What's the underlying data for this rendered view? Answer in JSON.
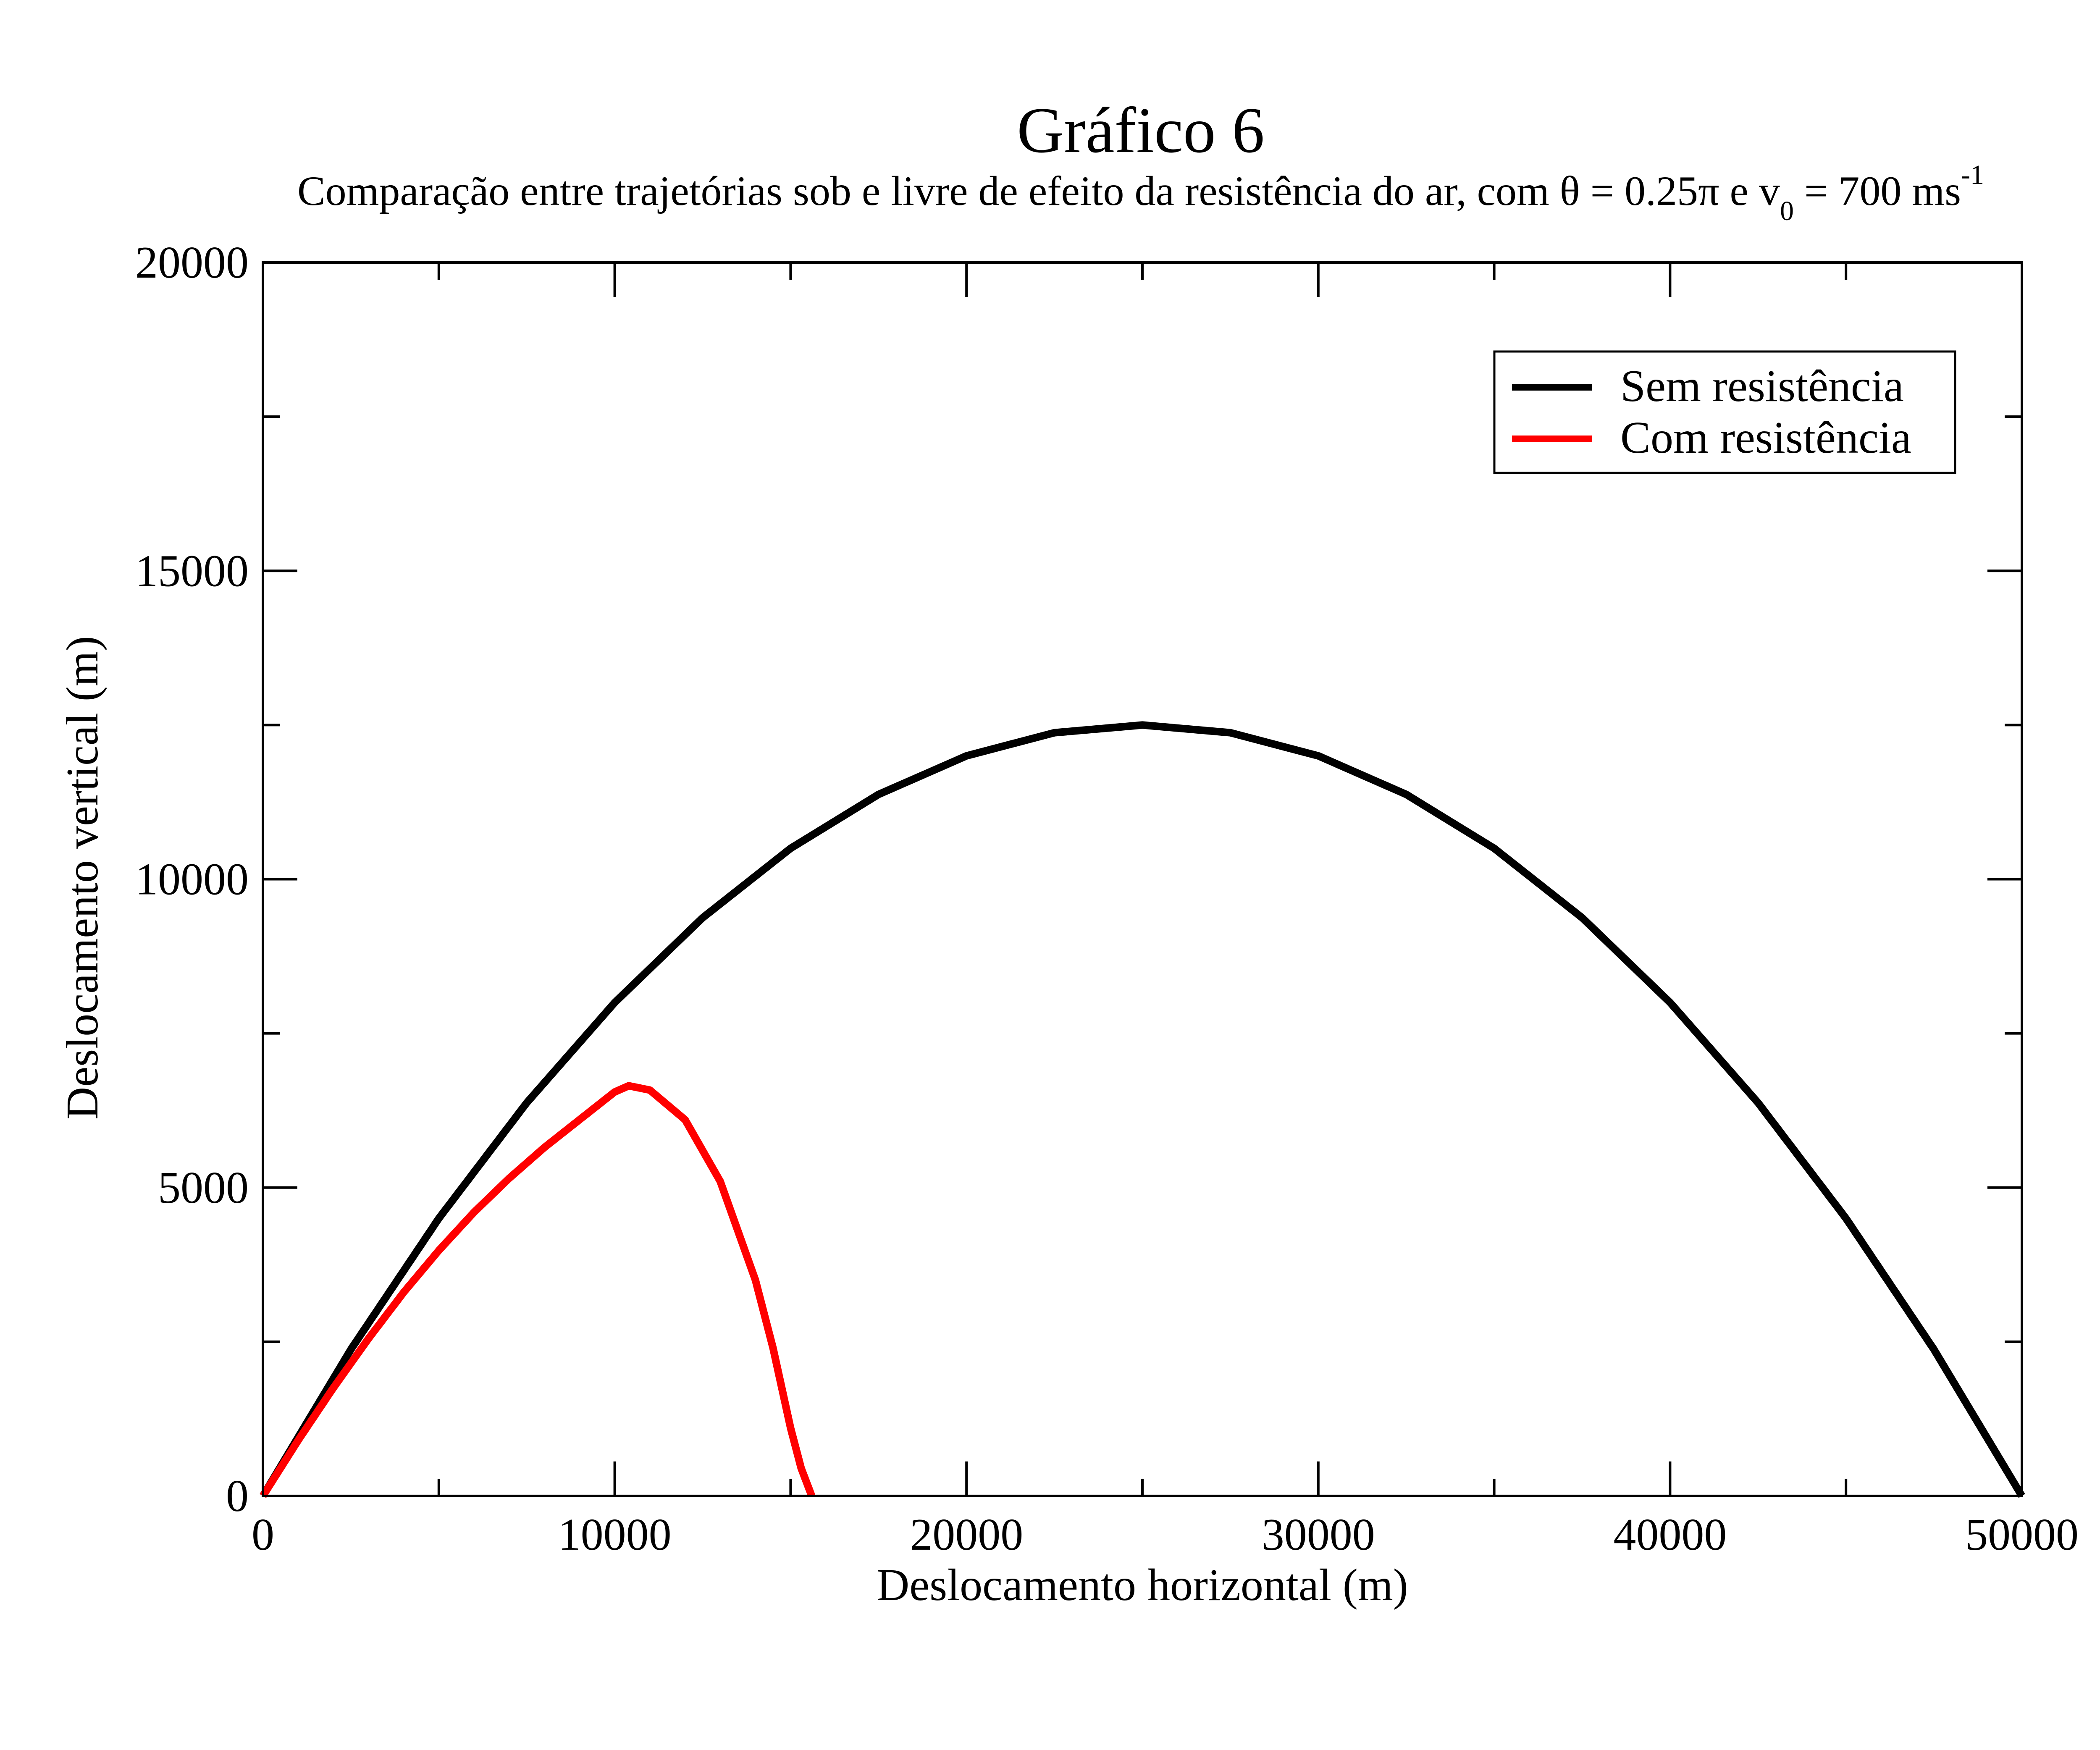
{
  "chart_data": {
    "type": "line",
    "title": "Gráfico 6",
    "subtitle": {
      "prefix": "Comparação entre trajetórias sob e livre de efeito da resistência do ar, com θ = 0.25π e v",
      "subscript": "0",
      "middle": " = 700 ms",
      "superscript": "-1"
    },
    "xlabel": "Deslocamento horizontal (m)",
    "ylabel": "Deslocamento vertical (m)",
    "xlim": [
      0,
      50000
    ],
    "ylim": [
      0,
      20000
    ],
    "xticks": [
      0,
      10000,
      20000,
      30000,
      40000,
      50000
    ],
    "yticks": [
      0,
      5000,
      10000,
      15000,
      20000
    ],
    "xtick_labels": [
      "0",
      "10000",
      "20000",
      "30000",
      "40000",
      "50000"
    ],
    "ytick_labels": [
      "0",
      "5000",
      "10000",
      "15000",
      "20000"
    ],
    "x_minor_step": 5000,
    "y_minor_step": 2500,
    "grid": false,
    "legend_position": "top-right",
    "series": [
      {
        "name": "Sem resistência",
        "color": "#000000",
        "x": [
          0,
          2500,
          5000,
          7500,
          10000,
          12500,
          15000,
          17500,
          20000,
          22500,
          25000,
          27500,
          30000,
          32500,
          35000,
          37500,
          40000,
          42500,
          45000,
          47500,
          50000
        ],
        "y": [
          0,
          2375,
          4500,
          6375,
          8000,
          9375,
          10500,
          11375,
          12000,
          12375,
          12500,
          12375,
          12000,
          11375,
          10500,
          9375,
          8000,
          6375,
          4500,
          2375,
          0
        ]
      },
      {
        "name": "Com resistência",
        "color": "#ff0000",
        "x": [
          0,
          1000,
          2000,
          3000,
          4000,
          5000,
          6000,
          7000,
          8000,
          9000,
          10000,
          10400,
          11000,
          12000,
          13000,
          14000,
          14500,
          15000,
          15300,
          15600
        ],
        "y": [
          0,
          900,
          1750,
          2550,
          3300,
          3980,
          4600,
          5150,
          5650,
          6100,
          6550,
          6650,
          6580,
          6100,
          5100,
          3500,
          2400,
          1100,
          450,
          0
        ]
      }
    ]
  }
}
